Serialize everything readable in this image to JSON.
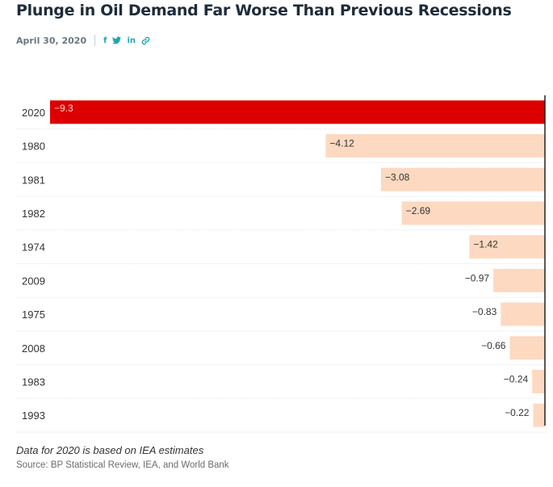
{
  "header": {
    "title": "Plunge in Oil Demand Far Worse Than Previous Recessions",
    "date": "April 30, 2020",
    "share_icons": [
      "facebook-icon",
      "twitter-icon",
      "linkedin-icon",
      "link-icon"
    ],
    "share_facebook": "f",
    "share_linkedin": "in"
  },
  "chart_data": {
    "type": "bar",
    "orientation": "horizontal",
    "categories": [
      "2020",
      "1980",
      "1981",
      "1982",
      "1974",
      "2009",
      "1975",
      "2008",
      "1983",
      "1993"
    ],
    "values": [
      -9.3,
      -4.12,
      -3.08,
      -2.69,
      -1.42,
      -0.97,
      -0.83,
      -0.66,
      -0.24,
      -0.22
    ],
    "value_labels": [
      "−9.3",
      "−4.12",
      "−3.08",
      "−2.69",
      "−1.42",
      "−0.97",
      "−0.83",
      "−0.66",
      "−0.24",
      "−0.22"
    ],
    "highlight_category": "2020",
    "xlim": [
      -9.3,
      0
    ],
    "grid": false,
    "colors": {
      "highlight": "#dd0000",
      "default": "#fdd9c1",
      "highlight_label": "#ffd0c8",
      "label": "#333333"
    }
  },
  "footer": {
    "note": "Data for 2020 is based on IEA estimates",
    "source": "Source: BP Statistical Review, IEA, and World Bank"
  }
}
